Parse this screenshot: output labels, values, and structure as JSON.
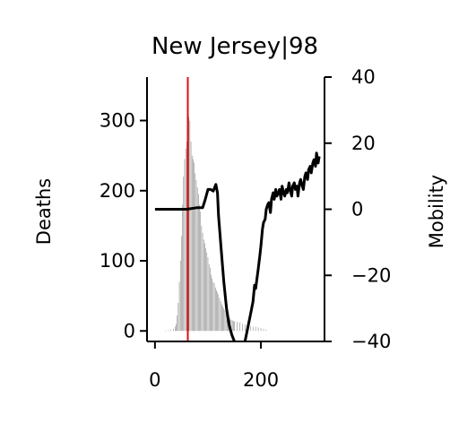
{
  "chart_data": {
    "type": "bar+line",
    "title": "New Jersey|98",
    "xlabel": "",
    "ylabel_left": "Deaths",
    "ylabel_right": "Mobility",
    "xlim": [
      -15,
      320
    ],
    "ylim_left": [
      -15,
      362
    ],
    "ylim_right": [
      -40,
      40
    ],
    "xticks": [
      0,
      200
    ],
    "yticks_left": [
      0,
      100,
      200,
      300
    ],
    "yticks_right": [
      -40,
      -20,
      0,
      20,
      40
    ],
    "marker_x": 62,
    "marker_color": "#e01010",
    "bar_color": "#7a7a7a",
    "line_color": "#000000",
    "deaths_series": {
      "name": "Deaths",
      "points": [
        [
          20,
          0
        ],
        [
          25,
          1
        ],
        [
          30,
          2
        ],
        [
          35,
          3
        ],
        [
          38,
          6
        ],
        [
          40,
          10
        ],
        [
          42,
          22
        ],
        [
          44,
          40
        ],
        [
          46,
          70
        ],
        [
          48,
          100
        ],
        [
          50,
          135
        ],
        [
          52,
          180
        ],
        [
          54,
          220
        ],
        [
          56,
          245
        ],
        [
          58,
          260
        ],
        [
          60,
          270
        ],
        [
          62,
          285
        ],
        [
          64,
          305
        ],
        [
          66,
          300
        ],
        [
          68,
          270
        ],
        [
          70,
          250
        ],
        [
          72,
          245
        ],
        [
          74,
          240
        ],
        [
          76,
          225
        ],
        [
          78,
          215
        ],
        [
          80,
          205
        ],
        [
          82,
          195
        ],
        [
          84,
          180
        ],
        [
          86,
          170
        ],
        [
          88,
          150
        ],
        [
          90,
          140
        ],
        [
          92,
          130
        ],
        [
          94,
          125
        ],
        [
          96,
          118
        ],
        [
          98,
          112
        ],
        [
          100,
          105
        ],
        [
          102,
          95
        ],
        [
          104,
          90
        ],
        [
          106,
          80
        ],
        [
          108,
          75
        ],
        [
          110,
          70
        ],
        [
          112,
          68
        ],
        [
          114,
          62
        ],
        [
          116,
          58
        ],
        [
          118,
          55
        ],
        [
          120,
          52
        ],
        [
          122,
          47
        ],
        [
          124,
          42
        ],
        [
          126,
          38
        ],
        [
          128,
          35
        ],
        [
          130,
          32
        ],
        [
          132,
          30
        ],
        [
          134,
          28
        ],
        [
          136,
          25
        ],
        [
          138,
          22
        ],
        [
          140,
          20
        ],
        [
          142,
          18
        ],
        [
          144,
          16
        ],
        [
          146,
          15
        ],
        [
          148,
          14
        ],
        [
          150,
          14
        ],
        [
          155,
          13
        ],
        [
          160,
          12
        ],
        [
          165,
          10
        ],
        [
          170,
          9
        ],
        [
          175,
          8
        ],
        [
          180,
          7
        ],
        [
          185,
          6
        ],
        [
          190,
          6
        ],
        [
          195,
          5
        ],
        [
          200,
          4
        ],
        [
          205,
          3
        ],
        [
          210,
          2
        ]
      ]
    },
    "mobility_series": {
      "name": "Mobility",
      "points": [
        [
          0,
          0
        ],
        [
          20,
          0
        ],
        [
          40,
          0
        ],
        [
          60,
          0
        ],
        [
          80,
          0.5
        ],
        [
          90,
          0.5
        ],
        [
          95,
          3
        ],
        [
          100,
          6
        ],
        [
          105,
          6
        ],
        [
          110,
          5.5
        ],
        [
          115,
          7.5
        ],
        [
          118,
          5
        ],
        [
          120,
          -2
        ],
        [
          125,
          -12
        ],
        [
          130,
          -22
        ],
        [
          135,
          -30
        ],
        [
          140,
          -35
        ],
        [
          145,
          -38
        ],
        [
          150,
          -40
        ],
        [
          155,
          -42
        ],
        [
          160,
          -43
        ],
        [
          165,
          -43
        ],
        [
          170,
          -40
        ],
        [
          175,
          -36
        ],
        [
          180,
          -32
        ],
        [
          185,
          -28
        ],
        [
          188,
          -23
        ],
        [
          190,
          -24
        ],
        [
          195,
          -18
        ],
        [
          198,
          -14
        ],
        [
          200,
          -11
        ],
        [
          203,
          -6
        ],
        [
          205,
          -4
        ],
        [
          208,
          -3
        ],
        [
          210,
          0
        ],
        [
          213,
          1.5
        ],
        [
          215,
          2
        ],
        [
          218,
          -1
        ],
        [
          220,
          3
        ],
        [
          223,
          5
        ],
        [
          225,
          3
        ],
        [
          228,
          6
        ],
        [
          230,
          4
        ],
        [
          233,
          5
        ],
        [
          235,
          6
        ],
        [
          238,
          3
        ],
        [
          240,
          7
        ],
        [
          243,
          5
        ],
        [
          245,
          4
        ],
        [
          248,
          6
        ],
        [
          250,
          5
        ],
        [
          253,
          8
        ],
        [
          255,
          6
        ],
        [
          258,
          4
        ],
        [
          260,
          7
        ],
        [
          263,
          8
        ],
        [
          265,
          6
        ],
        [
          268,
          7
        ],
        [
          270,
          4
        ],
        [
          273,
          8
        ],
        [
          275,
          9
        ],
        [
          278,
          7
        ],
        [
          280,
          6
        ],
        [
          283,
          10
        ],
        [
          285,
          11
        ],
        [
          288,
          9
        ],
        [
          290,
          12
        ],
        [
          293,
          13
        ],
        [
          295,
          11
        ],
        [
          298,
          14
        ],
        [
          300,
          15
        ],
        [
          303,
          13
        ],
        [
          305,
          17
        ],
        [
          308,
          14
        ],
        [
          310,
          16
        ]
      ]
    }
  }
}
